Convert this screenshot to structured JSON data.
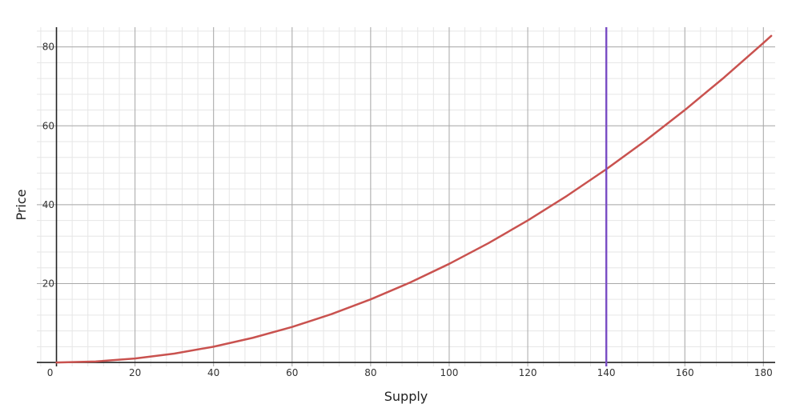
{
  "chart_data": {
    "type": "line",
    "title": "",
    "xlabel": "Supply",
    "ylabel": "Price",
    "xlim": [
      -5,
      183
    ],
    "ylim": [
      -1,
      85
    ],
    "x_major_ticks": [
      0,
      20,
      40,
      60,
      80,
      100,
      120,
      140,
      160,
      180
    ],
    "x_tick_labels": [
      "0",
      "20",
      "40",
      "60",
      "80",
      "100",
      "120",
      "140",
      "160",
      "180"
    ],
    "y_major_ticks": [
      20,
      40,
      60,
      80
    ],
    "y_tick_labels": [
      "20",
      "40",
      "60",
      "80"
    ],
    "x_minor_step": 4,
    "y_minor_step": 4,
    "grid": true,
    "series": [
      {
        "color": "#c9524f",
        "x": [
          0,
          10,
          20,
          30,
          40,
          50,
          60,
          70,
          80,
          90,
          100,
          110,
          120,
          130,
          140,
          150,
          160,
          170,
          180,
          182
        ],
        "y": [
          0,
          0.25,
          1,
          2.25,
          4,
          6.25,
          9,
          12.25,
          16,
          20.25,
          25,
          30.25,
          36,
          42.25,
          49,
          56.25,
          64,
          72.25,
          81,
          82.81
        ]
      }
    ],
    "vertical_line": {
      "x": 140,
      "color": "#7b4fc4"
    }
  }
}
